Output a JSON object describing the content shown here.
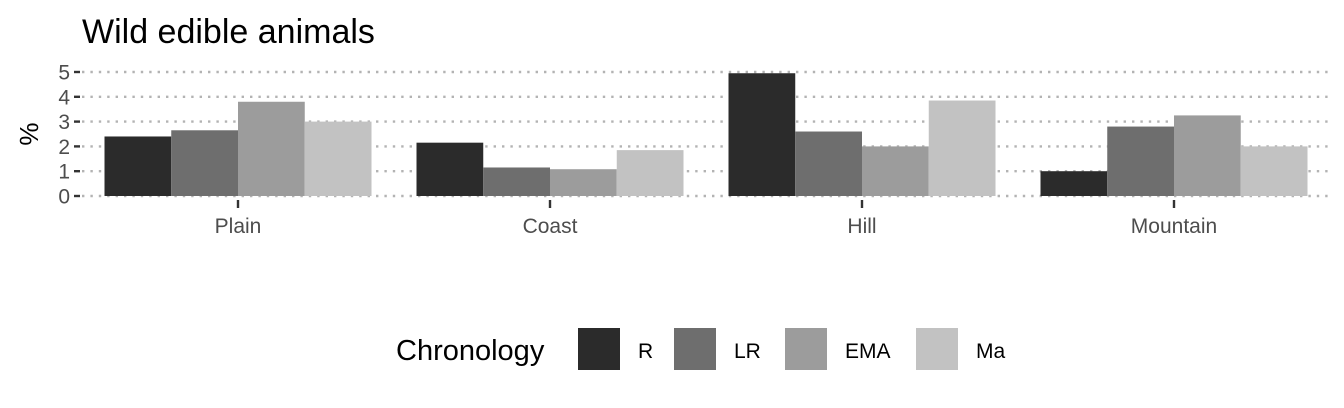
{
  "chart_data": {
    "type": "bar",
    "title": "Wild edible animals",
    "xlabel": "",
    "ylabel": "%",
    "ylim": [
      0,
      5
    ],
    "yticks": [
      0,
      1,
      2,
      3,
      4,
      5
    ],
    "grid": "horizontal-dotted",
    "categories": [
      "Plain",
      "Coast",
      "Hill",
      "Mountain"
    ],
    "legend": {
      "title": "Chronology",
      "position": "bottom"
    },
    "series": [
      {
        "name": "R",
        "color": "#2b2b2b",
        "values": [
          2.4,
          2.15,
          4.95,
          1.0
        ]
      },
      {
        "name": "LR",
        "color": "#6e6e6e",
        "values": [
          2.65,
          1.15,
          2.6,
          2.8
        ]
      },
      {
        "name": "EMA",
        "color": "#9c9c9c",
        "values": [
          3.8,
          1.08,
          2.0,
          3.25
        ]
      },
      {
        "name": "Ma",
        "color": "#c2c2c2",
        "values": [
          3.0,
          1.85,
          3.85,
          2.0
        ]
      }
    ]
  }
}
